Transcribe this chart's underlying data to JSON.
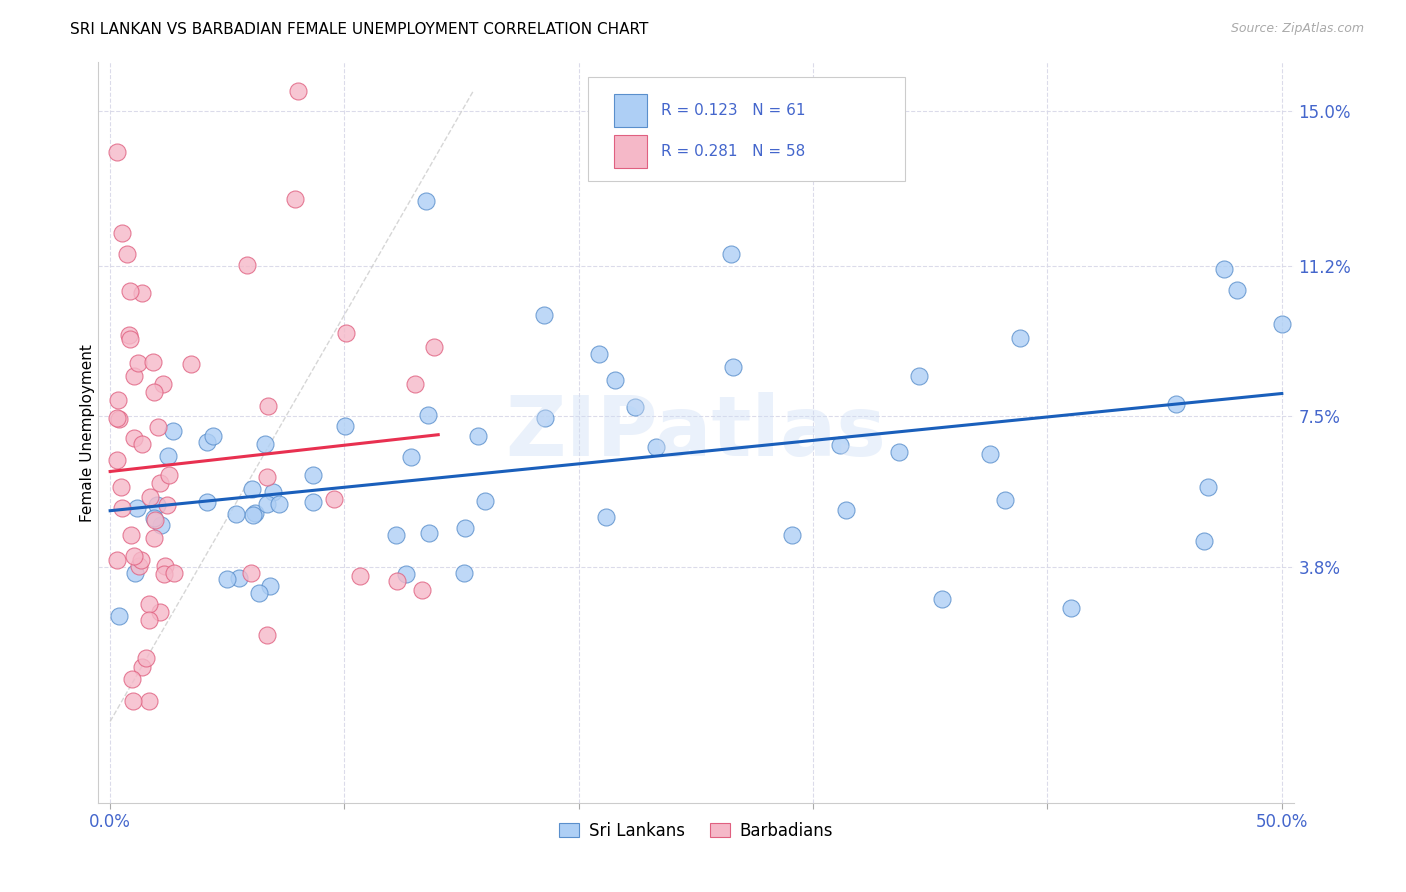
{
  "title": "SRI LANKAN VS BARBADIAN FEMALE UNEMPLOYMENT CORRELATION CHART",
  "source": "Source: ZipAtlas.com",
  "ylabel": "Female Unemployment",
  "xlabel_ticks_edge": [
    "0.0%",
    "50.0%"
  ],
  "xlabel_vals_edge": [
    0.0,
    0.5
  ],
  "xlabel_vals_grid": [
    0.0,
    0.1,
    0.2,
    0.3,
    0.4,
    0.5
  ],
  "ylabel_ticks": [
    "3.8%",
    "7.5%",
    "11.2%",
    "15.0%"
  ],
  "ylabel_vals": [
    0.038,
    0.075,
    0.112,
    0.15
  ],
  "xlim": [
    -0.005,
    0.505
  ],
  "ylim": [
    -0.02,
    0.162
  ],
  "sri_lankans_color": "#aecff5",
  "barbadians_color": "#f5b8c8",
  "sri_lankans_edge_color": "#5a8fcc",
  "barbadians_edge_color": "#e06080",
  "sri_lankans_line_color": "#1a5fbb",
  "barbadians_line_color": "#e83050",
  "sri_lankans_R": 0.123,
  "sri_lankans_N": 61,
  "barbadians_R": 0.281,
  "barbadians_N": 58,
  "legend_label_1": "Sri Lankans",
  "legend_label_2": "Barbadians",
  "watermark": "ZIPatlas",
  "grid_color": "#d8d8e8",
  "background_color": "#ffffff",
  "title_fontsize": 11,
  "axis_label_color": "#4466cc",
  "diag_color": "#cccccc"
}
